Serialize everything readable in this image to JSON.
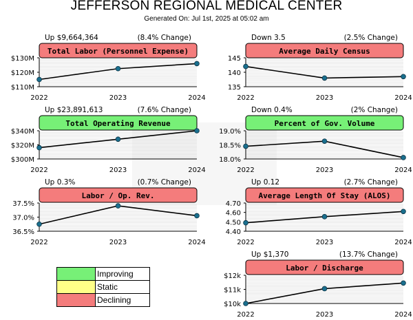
{
  "header": {
    "title": "JEFFERSON REGIONAL MEDICAL CENTER",
    "subtitle": "Generated On: Jul 1st, 2025 at 05:02 am"
  },
  "colors": {
    "improving": "#77f077",
    "static": "#ffff88",
    "declining": "#f47c7c",
    "line": "#000000",
    "marker": "#1a6f8e"
  },
  "legend": [
    {
      "label": "Improving",
      "color": "#77f077"
    },
    {
      "label": "Static",
      "color": "#ffff88"
    },
    {
      "label": "Declining",
      "color": "#f47c7c"
    }
  ],
  "chart_data": [
    {
      "type": "line",
      "title": "Total Labor (Personnel Expense)",
      "status": "declining",
      "left_note": "Up $9,664,364",
      "right_note": "(8.4% Change)",
      "x": [
        "2022",
        "2023",
        "2024"
      ],
      "values": [
        115.0,
        122.5,
        126.0
      ],
      "ylim": [
        110,
        130
      ],
      "yticks": [
        110,
        120,
        130
      ],
      "ytick_labels": [
        "$110M",
        "$120M",
        "$130M"
      ]
    },
    {
      "type": "line",
      "title": "Average Daily Census",
      "status": "declining",
      "left_note": "Down 3.5",
      "right_note": "(2.5% Change)",
      "x": [
        "2022",
        "2023",
        "2024"
      ],
      "values": [
        142.0,
        138.0,
        138.5
      ],
      "ylim": [
        135,
        145
      ],
      "yticks": [
        135,
        140,
        145
      ],
      "ytick_labels": [
        "135",
        "140",
        "145"
      ]
    },
    {
      "type": "line",
      "title": "Total Operating Revenue",
      "status": "improving",
      "left_note": "Up $23,891,613",
      "right_note": "(7.6% Change)",
      "x": [
        "2022",
        "2023",
        "2024"
      ],
      "values": [
        316,
        328,
        340
      ],
      "ylim": [
        300,
        340
      ],
      "yticks": [
        300,
        320,
        340
      ],
      "ytick_labels": [
        "$300M",
        "$320M",
        "$340M"
      ]
    },
    {
      "type": "line",
      "title": "Percent of Gov. Volume",
      "status": "improving",
      "left_note": "Down 0.4%",
      "right_note": "(2% Change)",
      "x": [
        "2022",
        "2023",
        "2024"
      ],
      "values": [
        18.45,
        18.63,
        18.05
      ],
      "ylim": [
        18.0,
        19.0
      ],
      "yticks": [
        18.0,
        18.5,
        19.0
      ],
      "ytick_labels": [
        "18.0%",
        "18.5%",
        "19.0%"
      ]
    },
    {
      "type": "line",
      "title": "Labor / Op. Rev.",
      "status": "declining",
      "left_note": "Up 0.3%",
      "right_note": "(0.7% Change)",
      "x": [
        "2022",
        "2023",
        "2024"
      ],
      "values": [
        36.75,
        37.4,
        37.05
      ],
      "ylim": [
        36.5,
        37.5
      ],
      "yticks": [
        36.5,
        37.0,
        37.5
      ],
      "ytick_labels": [
        "36.5%",
        "37.0%",
        "37.5%"
      ]
    },
    {
      "type": "line",
      "title": "Average Length Of Stay (ALOS)",
      "status": "declining",
      "left_note": "Up 0.12",
      "right_note": "(2.7% Change)",
      "x": [
        "2022",
        "2023",
        "2024"
      ],
      "values": [
        4.49,
        4.555,
        4.61
      ],
      "ylim": [
        4.4,
        4.7
      ],
      "yticks": [
        4.4,
        4.5,
        4.6,
        4.7
      ],
      "ytick_labels": [
        "4.40",
        "4.50",
        "4.60",
        "4.70"
      ]
    },
    {
      "type": "line",
      "title": "Labor / Discharge",
      "status": "declining",
      "left_note": "Up $1,370",
      "right_note": "(13.7% Change)",
      "x": [
        "2022",
        "2023",
        "2024"
      ],
      "values": [
        10000,
        11050,
        11450
      ],
      "ylim": [
        10000,
        12000
      ],
      "yticks": [
        10000,
        11000,
        12000
      ],
      "ytick_labels": [
        "$10k",
        "$11k",
        "$12k"
      ]
    }
  ]
}
